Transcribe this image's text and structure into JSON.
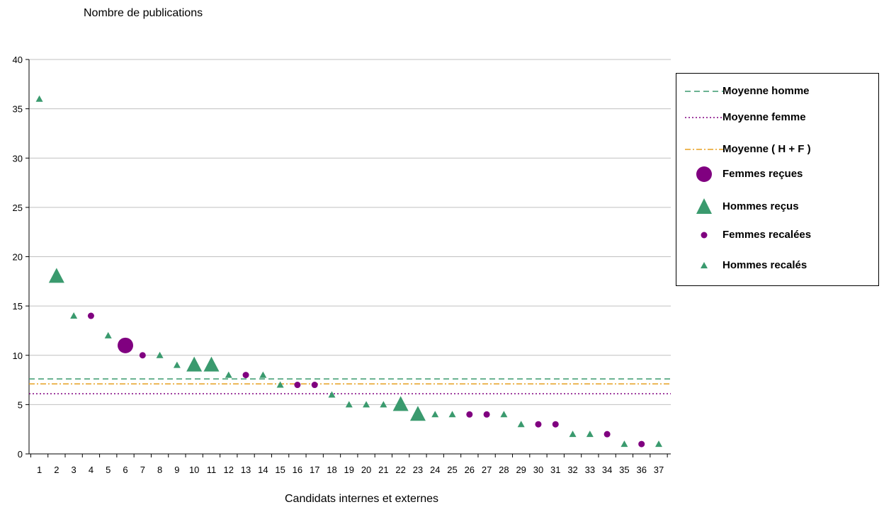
{
  "chart_data": {
    "type": "scatter",
    "ylabel": "Nombre de publications",
    "xlabel": "Candidats internes et externes",
    "ylim": [
      0,
      40
    ],
    "yticks": [
      0,
      5,
      10,
      15,
      20,
      25,
      30,
      35,
      40
    ],
    "xticks": [
      "1",
      "2",
      "3",
      "4",
      "5",
      "6",
      "7",
      "8",
      "9",
      "10",
      "11",
      "12",
      "13",
      "14",
      "15",
      "16",
      "17",
      "18",
      "19",
      "20",
      "21",
      "22",
      "23",
      "24",
      "25",
      "26",
      "27",
      "28",
      "29",
      "30",
      "31",
      "32",
      "33",
      "34",
      "35",
      "36",
      "37"
    ],
    "grid": "horizontal",
    "legend_position": "right",
    "colors": {
      "homme": "#3a9a6e",
      "femme": "#800080",
      "mean_hf": "#e8a020"
    },
    "lines": [
      {
        "name": "Moyenne homme",
        "value": 7.6,
        "style": "dashed",
        "color": "#3a9a6e"
      },
      {
        "name": "Moyenne femme",
        "value": 6.1,
        "style": "dotted",
        "color": "#800080"
      },
      {
        "name": "Moyenne ( H + F )",
        "value": 7.1,
        "style": "dash-dot",
        "color": "#e8a020"
      }
    ],
    "series": [
      {
        "name": "Femmes reçues",
        "marker": "large-circle",
        "color": "#800080",
        "points": [
          [
            6,
            11
          ]
        ]
      },
      {
        "name": "Hommes reçus",
        "marker": "large-triangle",
        "color": "#3a9a6e",
        "points": [
          [
            2,
            18
          ],
          [
            10,
            9
          ],
          [
            11,
            9
          ],
          [
            22,
            5
          ],
          [
            23,
            4
          ]
        ]
      },
      {
        "name": "Femmes recalées",
        "marker": "small-circle",
        "color": "#800080",
        "points": [
          [
            4,
            14
          ],
          [
            7,
            10
          ],
          [
            13,
            8
          ],
          [
            16,
            7
          ],
          [
            17,
            7
          ],
          [
            26,
            4
          ],
          [
            27,
            4
          ],
          [
            30,
            3
          ],
          [
            31,
            3
          ],
          [
            34,
            2
          ],
          [
            36,
            1
          ]
        ]
      },
      {
        "name": "Hommes recalés",
        "marker": "small-triangle",
        "color": "#3a9a6e",
        "points": [
          [
            1,
            36
          ],
          [
            3,
            14
          ],
          [
            5,
            12
          ],
          [
            8,
            10
          ],
          [
            9,
            9
          ],
          [
            12,
            8
          ],
          [
            14,
            8
          ],
          [
            15,
            7
          ],
          [
            18,
            6
          ],
          [
            19,
            5
          ],
          [
            20,
            5
          ],
          [
            21,
            5
          ],
          [
            24,
            4
          ],
          [
            25,
            4
          ],
          [
            28,
            4
          ],
          [
            29,
            3
          ],
          [
            32,
            2
          ],
          [
            33,
            2
          ],
          [
            35,
            1
          ],
          [
            37,
            1
          ]
        ]
      }
    ]
  }
}
